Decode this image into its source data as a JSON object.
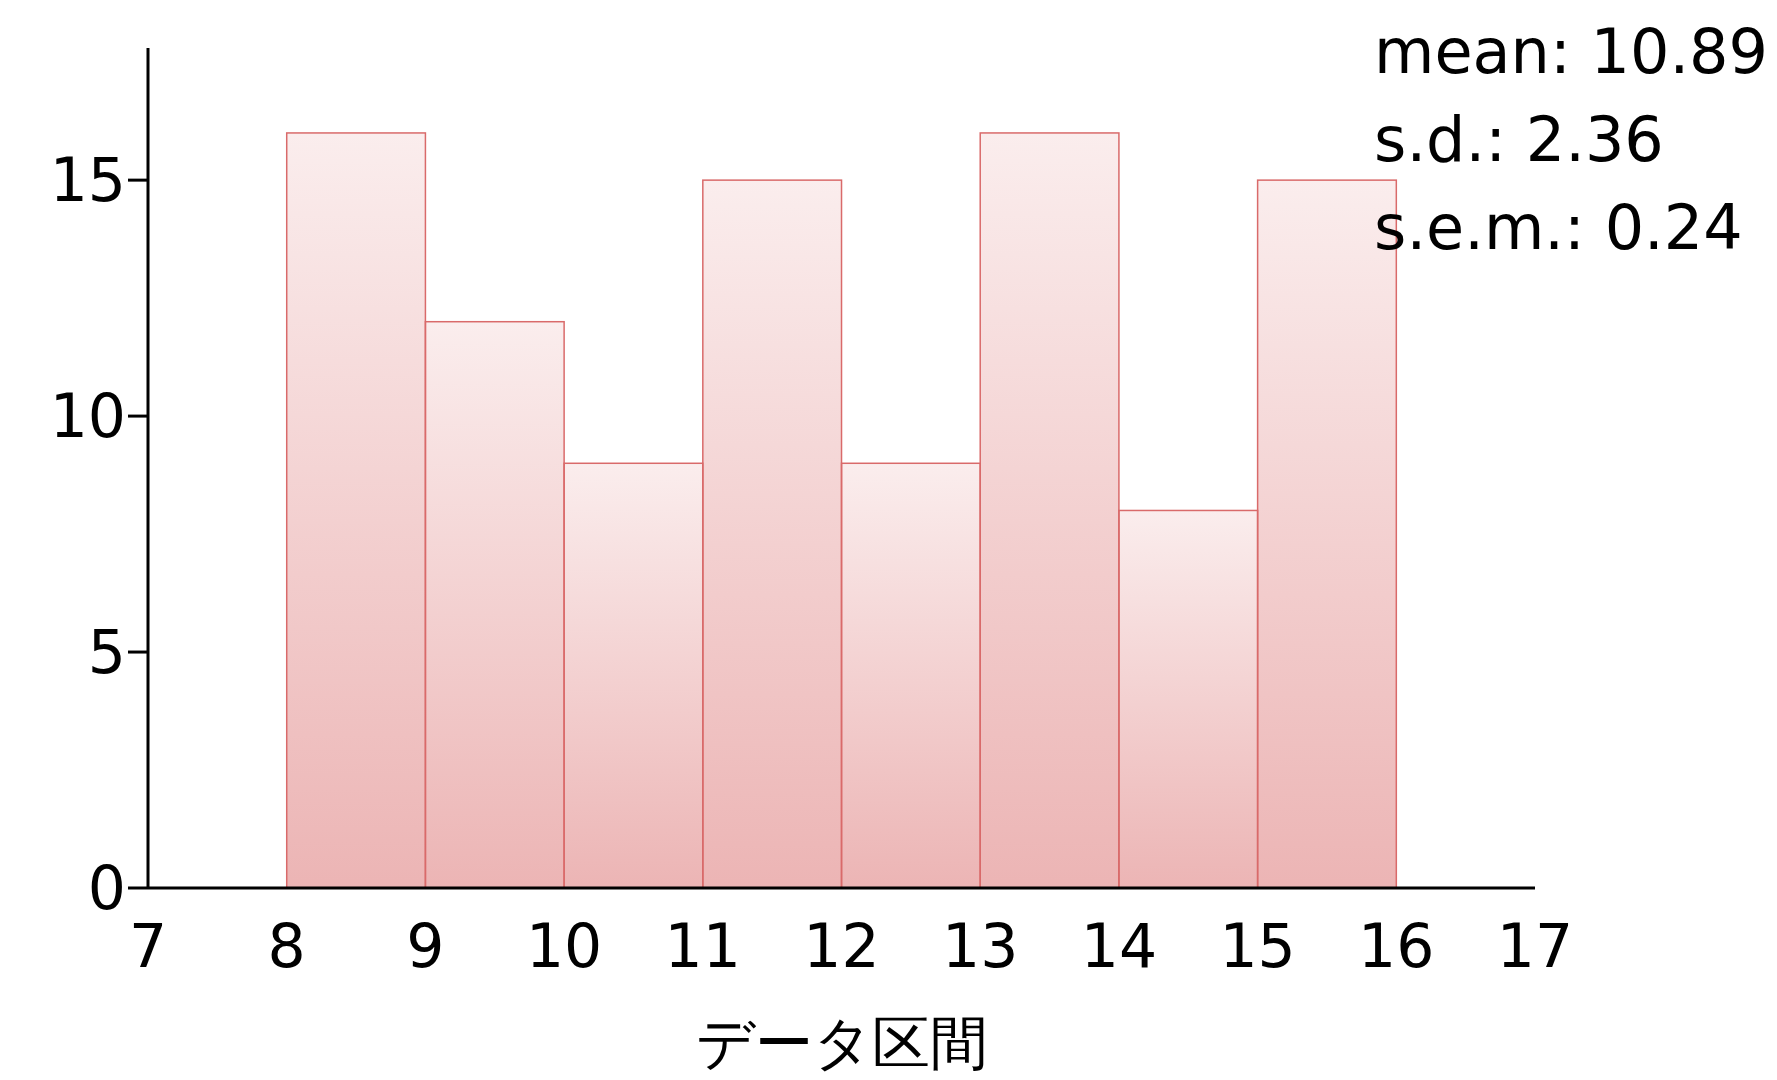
{
  "chart_data": {
    "type": "histogram",
    "xlabel": "データ区間",
    "bins": [
      8,
      9,
      10,
      11,
      12,
      13,
      14,
      15,
      16
    ],
    "values": [
      16,
      12,
      9,
      15,
      9,
      16,
      8,
      15
    ],
    "color": "#d96a6a",
    "xlim": [
      7,
      17
    ],
    "xticks": [
      7,
      8,
      9,
      10,
      11,
      12,
      13,
      14,
      15,
      16,
      17
    ],
    "ylim": [
      0,
      17.8
    ],
    "yticks": [
      0,
      5,
      10,
      15
    ],
    "grid": false,
    "annotations": [
      "mean: 10.89",
      "s.d.: 2.36",
      "s.e.m.: 0.24"
    ]
  }
}
